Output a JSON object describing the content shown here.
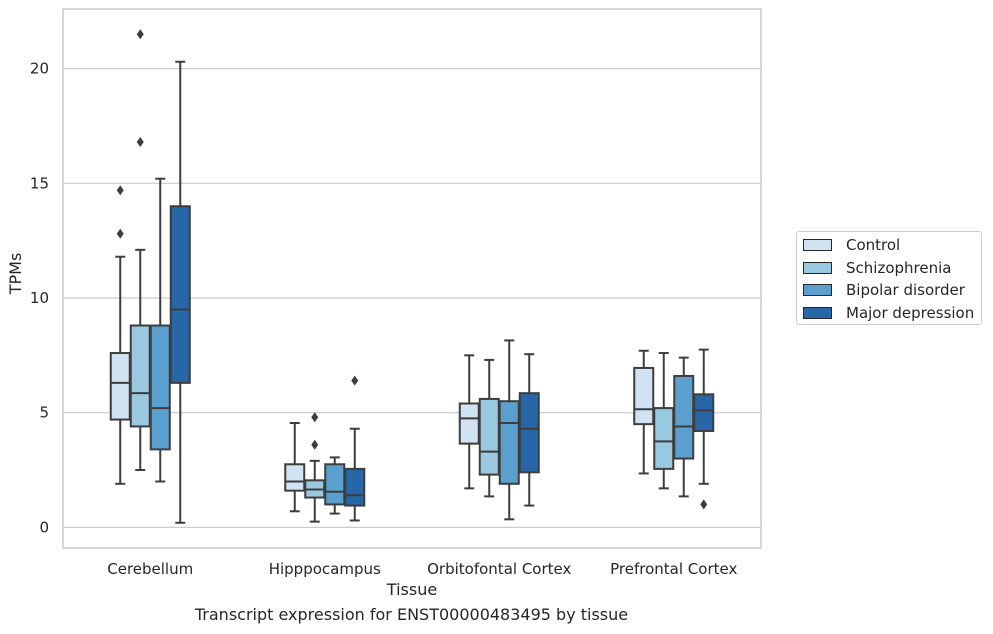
{
  "caption": "Transcript expression for ENST00000483495 by tissue",
  "chart_data": {
    "type": "box",
    "xlabel": "Tissue",
    "ylabel": "TPMs",
    "ylim": [
      -0.9,
      22.6
    ],
    "yticks": [
      0,
      5,
      10,
      15,
      20
    ],
    "grid": "horizontal",
    "legend_placement": "right, outside plot",
    "categories": [
      "Cerebellum",
      "Hipppocampus",
      "Orbitofontal Cortex",
      "Prefrontal Cortex"
    ],
    "series": [
      {
        "name": "Control",
        "color": "#d1e2f2",
        "boxes": [
          {
            "whislo": 1.9,
            "q1": 4.7,
            "med": 6.3,
            "q3": 7.6,
            "whishi": 11.8,
            "fliers": [
              12.8,
              14.7
            ]
          },
          {
            "whislo": 0.7,
            "q1": 1.6,
            "med": 2.0,
            "q3": 2.75,
            "whishi": 4.55,
            "fliers": []
          },
          {
            "whislo": 1.7,
            "q1": 3.65,
            "med": 4.75,
            "q3": 5.4,
            "whishi": 7.5,
            "fliers": []
          },
          {
            "whislo": 2.35,
            "q1": 4.5,
            "med": 5.15,
            "q3": 6.95,
            "whishi": 7.7,
            "fliers": []
          }
        ]
      },
      {
        "name": "Schizophrenia",
        "color": "#9ac8e0",
        "boxes": [
          {
            "whislo": 2.5,
            "q1": 4.4,
            "med": 5.85,
            "q3": 8.8,
            "whishi": 12.1,
            "fliers": [
              16.8,
              21.5
            ]
          },
          {
            "whislo": 0.25,
            "q1": 1.3,
            "med": 1.65,
            "q3": 2.05,
            "whishi": 2.9,
            "fliers": [
              3.6,
              4.8
            ]
          },
          {
            "whislo": 1.35,
            "q1": 2.3,
            "med": 3.3,
            "q3": 5.6,
            "whishi": 7.3,
            "fliers": []
          },
          {
            "whislo": 1.7,
            "q1": 2.55,
            "med": 3.75,
            "q3": 5.2,
            "whishi": 7.6,
            "fliers": []
          }
        ]
      },
      {
        "name": "Bipolar disorder",
        "color": "#5a9fce",
        "boxes": [
          {
            "whislo": 2.0,
            "q1": 3.4,
            "med": 5.2,
            "q3": 8.8,
            "whishi": 15.2,
            "fliers": []
          },
          {
            "whislo": 0.6,
            "q1": 1.0,
            "med": 1.55,
            "q3": 2.75,
            "whishi": 3.05,
            "fliers": []
          },
          {
            "whislo": 0.35,
            "q1": 1.9,
            "med": 4.55,
            "q3": 5.5,
            "whishi": 8.15,
            "fliers": []
          },
          {
            "whislo": 1.35,
            "q1": 3.0,
            "med": 4.4,
            "q3": 6.6,
            "whishi": 7.4,
            "fliers": []
          }
        ]
      },
      {
        "name": "Major depression",
        "color": "#2767a8",
        "boxes": [
          {
            "whislo": 0.2,
            "q1": 6.3,
            "med": 9.5,
            "q3": 14.0,
            "whishi": 20.3,
            "fliers": []
          },
          {
            "whislo": 0.3,
            "q1": 0.95,
            "med": 1.4,
            "q3": 2.55,
            "whishi": 4.3,
            "fliers": [
              6.4
            ]
          },
          {
            "whislo": 0.95,
            "q1": 2.4,
            "med": 4.3,
            "q3": 5.85,
            "whishi": 7.55,
            "fliers": []
          },
          {
            "whislo": 1.9,
            "q1": 4.2,
            "med": 5.1,
            "q3": 5.8,
            "whishi": 7.75,
            "fliers": [
              1.0
            ]
          }
        ]
      }
    ]
  }
}
